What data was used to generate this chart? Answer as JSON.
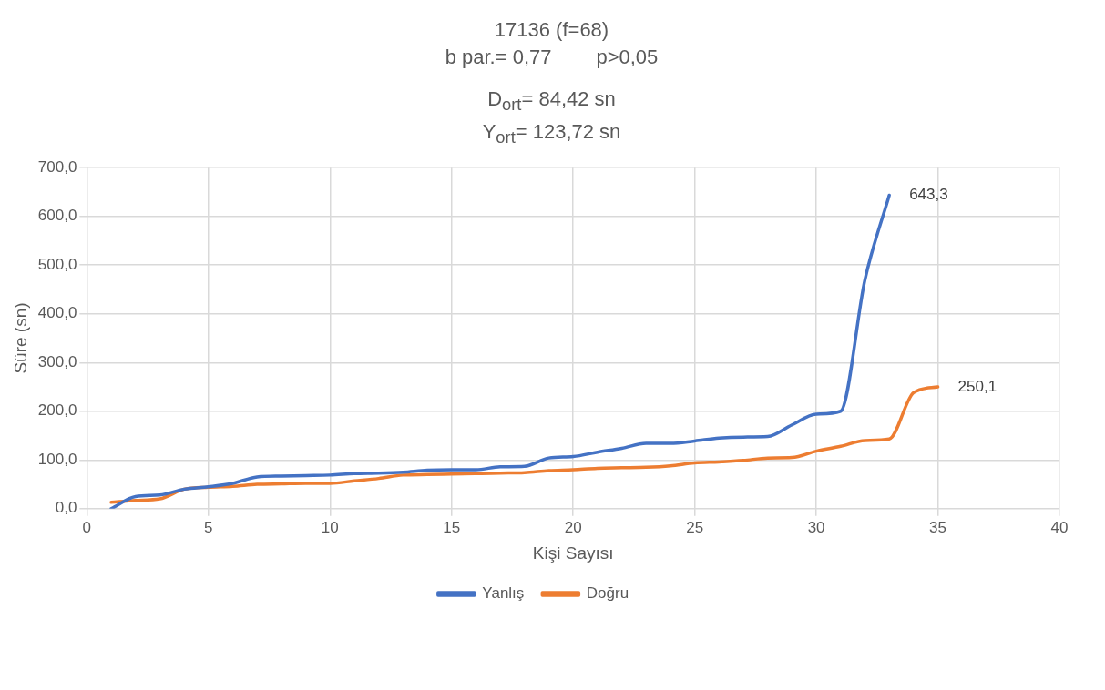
{
  "chart_data": {
    "type": "line",
    "title": "17136 (f=68)",
    "subtitle": "b par.= 0,77        p>0,05",
    "annotations": [
      "D$_{ort}$= 84,42 sn",
      "Y$_{ort}$= 123,72 sn"
    ],
    "xlabel": "Kişi Sayısı",
    "ylabel": "Süre (sn)",
    "xlim": [
      0,
      40
    ],
    "xticks": [
      0,
      5,
      10,
      15,
      20,
      25,
      30,
      35,
      40
    ],
    "ylim": [
      0,
      700
    ],
    "yticks": [
      {
        "value": 0,
        "label": "0,0"
      },
      {
        "value": 100,
        "label": "100,0"
      },
      {
        "value": 200,
        "label": "200,0"
      },
      {
        "value": 300,
        "label": "300,0"
      },
      {
        "value": 400,
        "label": "400,0"
      },
      {
        "value": 500,
        "label": "500,0"
      },
      {
        "value": 600,
        "label": "600,0"
      },
      {
        "value": 700,
        "label": "700,0"
      }
    ],
    "grid": true,
    "legend": "bottom",
    "marker": "none",
    "line_style": "solid",
    "series": [
      {
        "name": "Yanlış",
        "color": "#4472c4",
        "x": [
          1,
          2,
          3,
          4,
          5,
          6,
          7,
          8,
          9,
          10,
          11,
          12,
          13,
          14,
          15,
          16,
          17,
          18,
          19,
          20,
          21,
          22,
          23,
          24,
          25,
          26,
          27,
          28,
          29,
          30,
          31,
          32,
          33
        ],
        "values": [
          0,
          25,
          28,
          40,
          45,
          52,
          65,
          67,
          68,
          69,
          72,
          73,
          75,
          79,
          80,
          80,
          86,
          87,
          104,
          107,
          116,
          124,
          134,
          134,
          139,
          145,
          147,
          148,
          172,
          194,
          200,
          470,
          643.3
        ],
        "value_labels": [
          null,
          null,
          null,
          null,
          null,
          null,
          null,
          null,
          null,
          null,
          null,
          null,
          null,
          null,
          null,
          null,
          null,
          null,
          null,
          null,
          null,
          null,
          null,
          null,
          null,
          null,
          null,
          null,
          null,
          null,
          null,
          null,
          "643,3"
        ]
      },
      {
        "name": "Doğru",
        "color": "#ed7d31",
        "x": [
          1,
          2,
          3,
          4,
          5,
          6,
          7,
          8,
          9,
          10,
          11,
          12,
          13,
          14,
          15,
          16,
          17,
          18,
          19,
          20,
          21,
          22,
          23,
          24,
          25,
          26,
          27,
          28,
          29,
          30,
          31,
          32,
          33,
          34,
          35
        ],
        "values": [
          13,
          17,
          20,
          40,
          44,
          46,
          50,
          51,
          52,
          52,
          57,
          62,
          69,
          70,
          71,
          72,
          73,
          74,
          78,
          80,
          83,
          84,
          85,
          88,
          94,
          96,
          99,
          104,
          105,
          118,
          128,
          140,
          143,
          238,
          250.1
        ],
        "value_labels": [
          null,
          null,
          null,
          null,
          null,
          null,
          null,
          null,
          null,
          null,
          null,
          null,
          null,
          null,
          null,
          null,
          null,
          null,
          null,
          null,
          null,
          null,
          null,
          null,
          null,
          null,
          null,
          null,
          null,
          null,
          null,
          null,
          null,
          null,
          "250,1"
        ]
      }
    ]
  }
}
